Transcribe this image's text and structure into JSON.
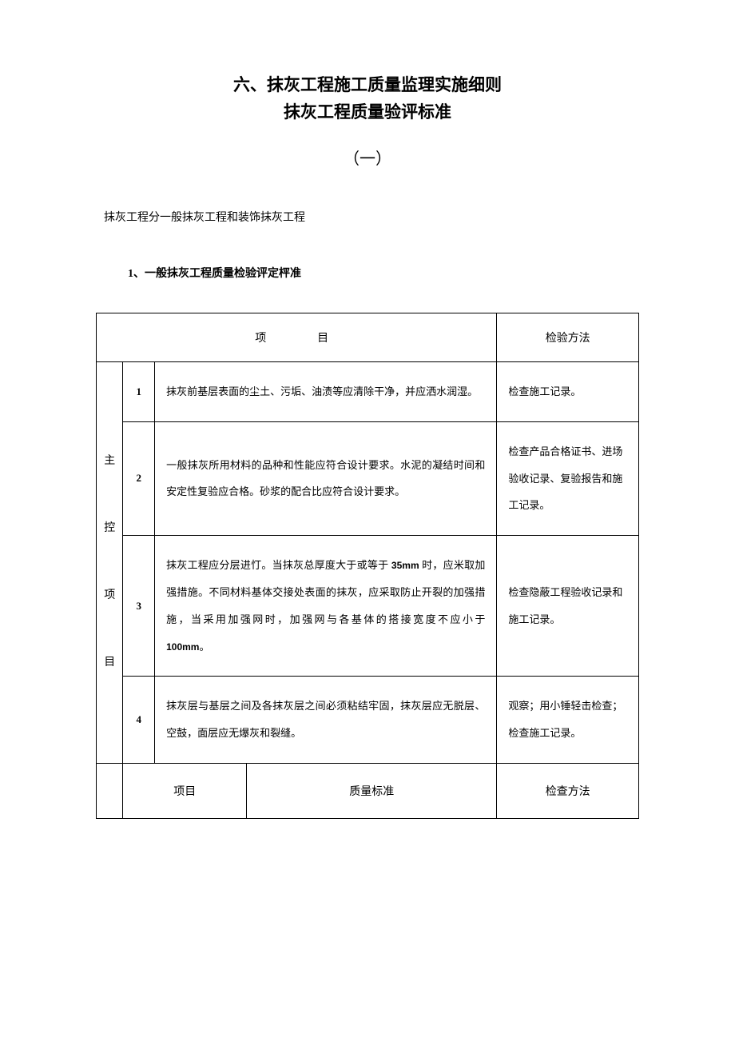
{
  "title1": "六、抹灰工程施工质量监理实施细则",
  "title2": "抹灰工程质量验评标准",
  "subtitle": "（一）",
  "intro": "抹灰工程分一般抹灰工程和装饰抹灰工程",
  "section_head": "1、一般抹灰工程质量检验评定枰准",
  "header_item": "项　　目",
  "header_method": "检验方法",
  "vlabel": "主控项目",
  "rows": [
    {
      "n": "1",
      "desc": "抹灰前基层表面的尘土、污垢、油渍等应清除干净，并应洒水润湿。",
      "method": "检查施工记录。"
    },
    {
      "n": "2",
      "desc": "一般抹灰所用材料的品种和性能应符合设计要求。水泥的凝结时间和安定性复验应合格。砂浆的配合比应符合设计要求。",
      "method": "检查产品合格证书、进场验收记录、复验报告和施工记录。"
    },
    {
      "n": "3",
      "desc_a": "抹灰工程应分层进忊。当抹灰总厚度大于或等于 ",
      "desc_num1": "35mm",
      "desc_b": " 时，应米取加强措施。不同材料基体交接处表面的抹灰，应采取防止开裂的加强措施，当采用加强网时，加强网与各基体的搭接宽度不应小于　",
      "desc_num2": "100mm",
      "desc_c": "。",
      "method": "检查隐蔽工程验收记录和施工记录。"
    },
    {
      "n": "4",
      "desc": "抹灰层与基层之间及各抹灰层之间必须粘结牢固，抹灰层应无脱层、空鼓，面层应无爆灰和裂缝。",
      "method": "观察；用小锤轻击检查；检查施工记录。"
    }
  ],
  "sub_item": "项目",
  "sub_std": "质量标准",
  "sub_method": "检查方法",
  "colors": {
    "text": "#000000",
    "bg": "#ffffff",
    "border": "#000000"
  }
}
